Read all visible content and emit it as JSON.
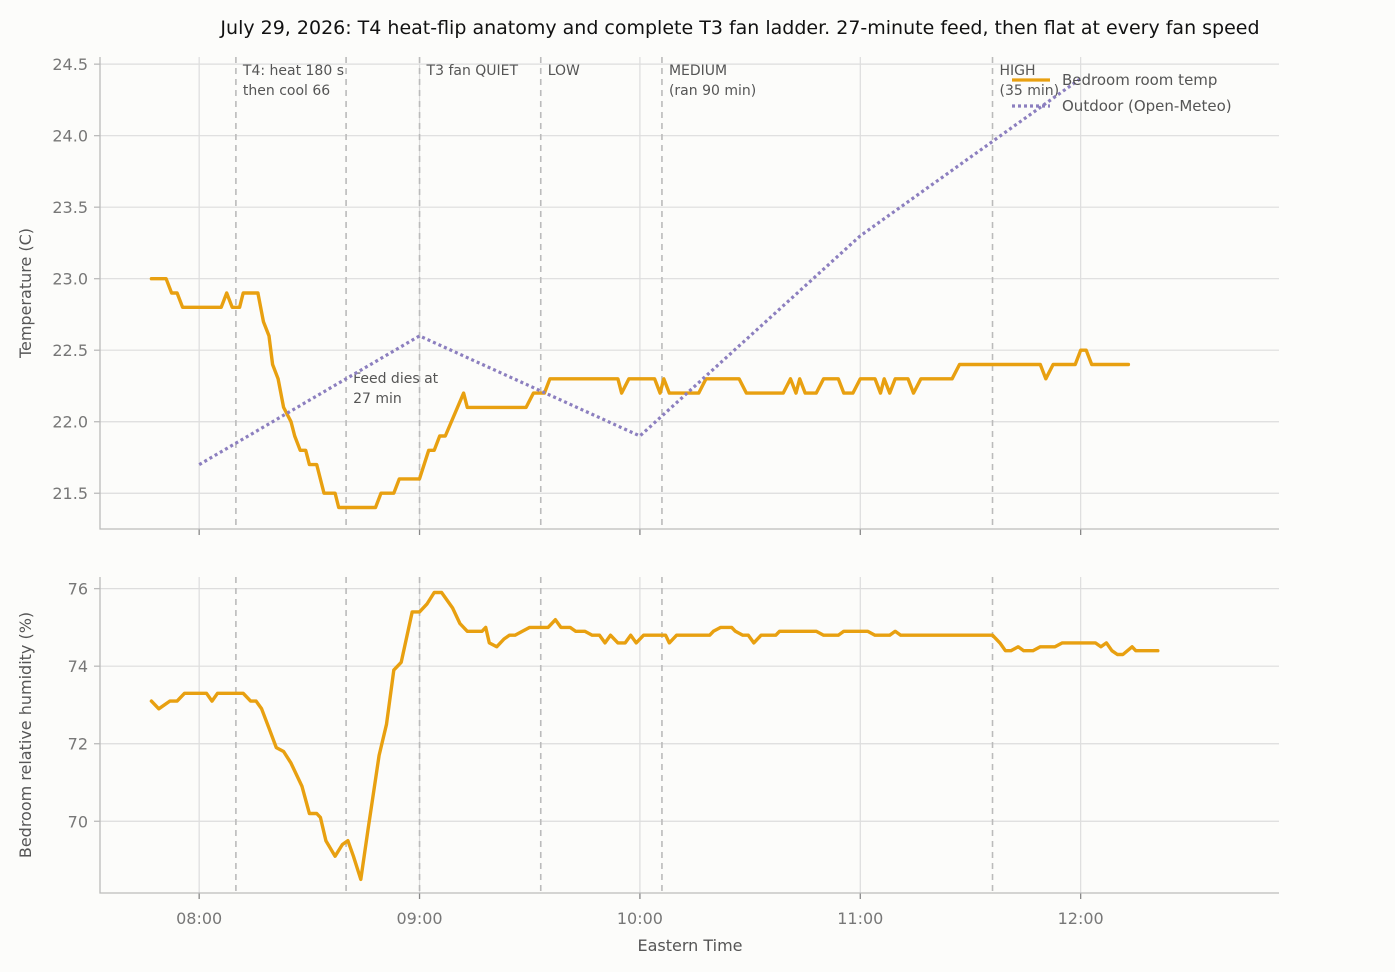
{
  "chart_data": {
    "type": "line",
    "title": "July 29, 2026: T4 heat-flip anatomy and complete T3 fan ladder. 27-minute feed, then flat at every fan speed",
    "xlabel": "Eastern Time",
    "x_ticks": [
      "08:00",
      "09:00",
      "10:00",
      "11:00",
      "12:00"
    ],
    "x_tick_values": [
      480,
      540,
      600,
      660,
      720
    ],
    "xlim": [
      "07:33",
      "12:54"
    ],
    "grid": true,
    "legend_position": "top-right",
    "events": [
      {
        "time": "08:10",
        "label_lines": [
          "T4: heat 180 s",
          "then cool 66"
        ]
      },
      {
        "time": "08:40",
        "label_lines": [
          "Feed dies at",
          "27 min"
        ]
      },
      {
        "time": "09:00",
        "label_lines": [
          "T3 fan QUIET"
        ]
      },
      {
        "time": "09:33",
        "label_lines": [
          "LOW"
        ]
      },
      {
        "time": "10:06",
        "label_lines": [
          "MEDIUM",
          "(ran 90 min)"
        ]
      },
      {
        "time": "11:36",
        "label_lines": [
          "HIGH",
          "(35 min)"
        ]
      }
    ],
    "panels": [
      {
        "ylabel": "Temperature (C)",
        "ylim": [
          21.25,
          24.55
        ],
        "y_ticks": [
          "21.5",
          "22.0",
          "22.5",
          "23.0",
          "23.5",
          "24.0",
          "24.5"
        ],
        "y_tick_values": [
          21.5,
          22.0,
          22.5,
          23.0,
          23.5,
          24.0,
          24.5
        ],
        "series": [
          {
            "name": "Bedroom room temp",
            "color": "#e8a010",
            "style": "solid",
            "points": [
              [
                467,
                23.0
              ],
              [
                471,
                23.0
              ],
              [
                472.5,
                22.9
              ],
              [
                474,
                22.9
              ],
              [
                475.5,
                22.8
              ],
              [
                486,
                22.8
              ],
              [
                487.5,
                22.9
              ],
              [
                489,
                22.8
              ],
              [
                491,
                22.8
              ],
              [
                492,
                22.9
              ],
              [
                496,
                22.9
              ],
              [
                497.5,
                22.7
              ],
              [
                499,
                22.6
              ],
              [
                500,
                22.4
              ],
              [
                501.5,
                22.3
              ],
              [
                503,
                22.1
              ],
              [
                505,
                22.0
              ],
              [
                506,
                21.9
              ],
              [
                507.5,
                21.8
              ],
              [
                509,
                21.8
              ],
              [
                510,
                21.7
              ],
              [
                512,
                21.7
              ],
              [
                514,
                21.5
              ],
              [
                517,
                21.5
              ],
              [
                518,
                21.4
              ],
              [
                528,
                21.4
              ],
              [
                529.5,
                21.5
              ],
              [
                533,
                21.5
              ],
              [
                534.5,
                21.6
              ],
              [
                540,
                21.6
              ],
              [
                542.5,
                21.8
              ],
              [
                544,
                21.8
              ],
              [
                545.5,
                21.9
              ],
              [
                547,
                21.9
              ],
              [
                552,
                22.2
              ],
              [
                553,
                22.1
              ],
              [
                569,
                22.1
              ],
              [
                571,
                22.2
              ],
              [
                574,
                22.2
              ],
              [
                575.5,
                22.3
              ],
              [
                594,
                22.3
              ],
              [
                595,
                22.2
              ],
              [
                597,
                22.3
              ],
              [
                604,
                22.3
              ],
              [
                605.5,
                22.2
              ],
              [
                606.5,
                22.3
              ],
              [
                608,
                22.2
              ],
              [
                616,
                22.2
              ],
              [
                618,
                22.3
              ],
              [
                627,
                22.3
              ],
              [
                629,
                22.2
              ],
              [
                639,
                22.2
              ],
              [
                641,
                22.3
              ],
              [
                642.5,
                22.2
              ],
              [
                643.5,
                22.3
              ],
              [
                645,
                22.2
              ],
              [
                648,
                22.2
              ],
              [
                650,
                22.3
              ],
              [
                654,
                22.3
              ],
              [
                655.5,
                22.2
              ],
              [
                658,
                22.2
              ],
              [
                660,
                22.3
              ],
              [
                664,
                22.3
              ],
              [
                665.5,
                22.2
              ],
              [
                666.5,
                22.3
              ],
              [
                668,
                22.2
              ],
              [
                669.5,
                22.3
              ],
              [
                673,
                22.3
              ],
              [
                674.5,
                22.2
              ],
              [
                676.5,
                22.3
              ],
              [
                685,
                22.3
              ],
              [
                687,
                22.4
              ],
              [
                709,
                22.4
              ],
              [
                710.5,
                22.3
              ],
              [
                712.5,
                22.4
              ],
              [
                718.5,
                22.4
              ],
              [
                720,
                22.5
              ],
              [
                721.5,
                22.5
              ],
              [
                723,
                22.4
              ],
              [
                733,
                22.4
              ]
            ]
          },
          {
            "name": "Outdoor (Open-Meteo)",
            "color": "#8c7fbf",
            "style": "dotted",
            "points": [
              [
                480,
                21.7
              ],
              [
                540,
                22.6
              ],
              [
                600,
                21.9
              ],
              [
                660,
                23.3
              ],
              [
                720,
                24.4
              ]
            ]
          }
        ]
      },
      {
        "ylabel": "Bedroom relative humidity (%)",
        "ylim": [
          68.15,
          76.3
        ],
        "y_ticks": [
          "70",
          "72",
          "74",
          "76"
        ],
        "y_tick_values": [
          70,
          72,
          74,
          76
        ],
        "series": [
          {
            "name": "Bedroom relative humidity",
            "color": "#e8a010",
            "style": "solid",
            "points": [
              [
                467,
                73.1
              ],
              [
                469,
                72.9
              ],
              [
                472,
                73.1
              ],
              [
                474,
                73.1
              ],
              [
                476,
                73.3
              ],
              [
                480,
                73.3
              ],
              [
                482,
                73.3
              ],
              [
                483.5,
                73.1
              ],
              [
                485,
                73.3
              ],
              [
                492,
                73.3
              ],
              [
                494,
                73.1
              ],
              [
                495.5,
                73.1
              ],
              [
                497,
                72.9
              ],
              [
                499,
                72.4
              ],
              [
                501,
                71.9
              ],
              [
                503,
                71.8
              ],
              [
                505,
                71.5
              ],
              [
                508,
                70.9
              ],
              [
                510,
                70.2
              ],
              [
                512,
                70.2
              ],
              [
                513,
                70.1
              ],
              [
                514.5,
                69.5
              ],
              [
                517,
                69.1
              ],
              [
                519,
                69.4
              ],
              [
                520.5,
                69.5
              ],
              [
                522,
                69.1
              ],
              [
                524,
                68.5
              ],
              [
                526,
                69.8
              ],
              [
                529,
                71.7
              ],
              [
                531,
                72.5
              ],
              [
                533,
                73.9
              ],
              [
                535,
                74.1
              ],
              [
                538,
                75.4
              ],
              [
                540,
                75.4
              ],
              [
                542,
                75.6
              ],
              [
                544,
                75.9
              ],
              [
                546,
                75.9
              ],
              [
                549,
                75.5
              ],
              [
                551,
                75.1
              ],
              [
                553,
                74.9
              ],
              [
                557,
                74.9
              ],
              [
                558,
                75.0
              ],
              [
                559,
                74.6
              ],
              [
                561,
                74.5
              ],
              [
                563,
                74.7
              ],
              [
                564.5,
                74.8
              ],
              [
                566,
                74.8
              ],
              [
                568,
                74.9
              ],
              [
                570,
                75.0
              ],
              [
                575,
                75.0
              ],
              [
                577,
                75.2
              ],
              [
                578.5,
                75.0
              ],
              [
                581,
                75.0
              ],
              [
                582.5,
                74.9
              ],
              [
                585,
                74.9
              ],
              [
                587,
                74.8
              ],
              [
                589,
                74.8
              ],
              [
                590.5,
                74.6
              ],
              [
                592,
                74.8
              ],
              [
                594,
                74.6
              ],
              [
                596,
                74.6
              ],
              [
                597.5,
                74.8
              ],
              [
                599,
                74.6
              ],
              [
                601,
                74.8
              ],
              [
                607,
                74.8
              ],
              [
                608,
                74.6
              ],
              [
                610,
                74.8
              ],
              [
                619,
                74.8
              ],
              [
                620,
                74.9
              ],
              [
                622,
                75.0
              ],
              [
                625,
                75.0
              ],
              [
                626,
                74.9
              ],
              [
                628,
                74.8
              ],
              [
                629.5,
                74.8
              ],
              [
                631,
                74.6
              ],
              [
                633,
                74.8
              ],
              [
                637,
                74.8
              ],
              [
                638,
                74.9
              ],
              [
                648,
                74.9
              ],
              [
                650,
                74.8
              ],
              [
                654,
                74.8
              ],
              [
                655.5,
                74.9
              ],
              [
                662,
                74.9
              ],
              [
                664,
                74.8
              ],
              [
                668,
                74.8
              ],
              [
                669.5,
                74.9
              ],
              [
                671,
                74.8
              ],
              [
                696,
                74.8
              ],
              [
                698,
                74.6
              ],
              [
                699.5,
                74.4
              ],
              [
                701,
                74.4
              ],
              [
                703,
                74.5
              ],
              [
                704.5,
                74.4
              ],
              [
                707,
                74.4
              ],
              [
                709,
                74.5
              ],
              [
                713,
                74.5
              ],
              [
                715,
                74.6
              ],
              [
                724,
                74.6
              ],
              [
                725.5,
                74.5
              ],
              [
                727,
                74.6
              ],
              [
                728.5,
                74.4
              ],
              [
                730,
                74.3
              ],
              [
                731.5,
                74.3
              ],
              [
                734,
                74.5
              ],
              [
                735,
                74.4
              ],
              [
                741,
                74.4
              ]
            ]
          }
        ]
      }
    ]
  }
}
